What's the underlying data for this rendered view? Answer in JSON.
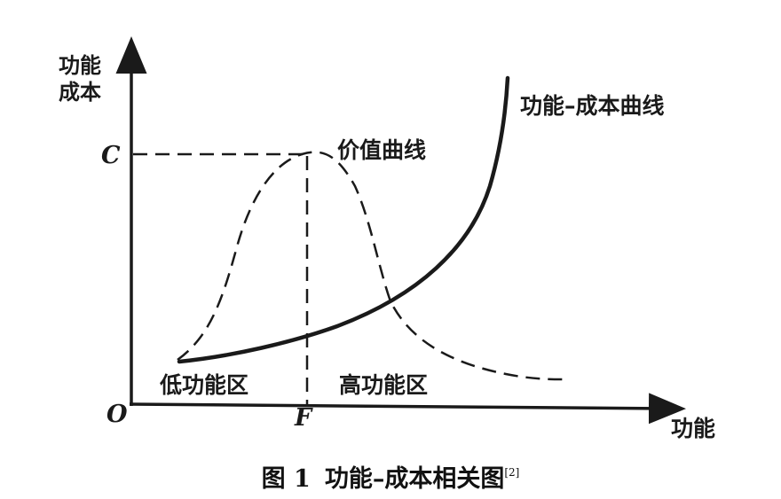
{
  "figure": {
    "y_axis_label": [
      "功能",
      "成本"
    ],
    "x_axis_label": "功能",
    "origin_label": "O",
    "c_label": "C",
    "f_label": "F",
    "cost_curve_label": "功能–成本曲线",
    "value_curve_label": "价值曲线",
    "low_region_label": "低功能区",
    "high_region_label": "高功能区"
  },
  "caption": {
    "figure_number": "图 1",
    "title": "功能–成本相关图",
    "citation": "[2]"
  },
  "colors": {
    "ink": "#1a1a1a",
    "background": "#ffffff"
  }
}
